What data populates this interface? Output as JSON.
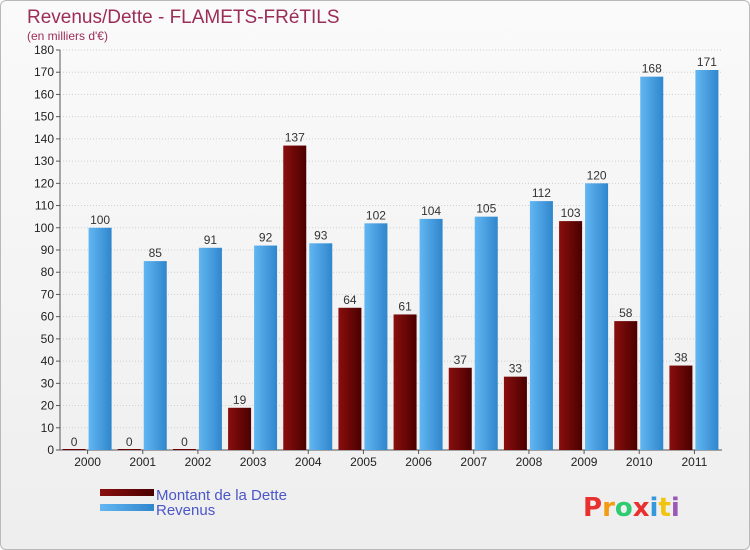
{
  "chart_data": {
    "type": "bar",
    "title": "Revenus/Dette - FLAMETS-FRéTILS",
    "subtitle": "(en milliers d'€)",
    "categories": [
      "2000",
      "2001",
      "2002",
      "2003",
      "2004",
      "2005",
      "2006",
      "2007",
      "2008",
      "2009",
      "2010",
      "2011"
    ],
    "series": [
      {
        "name": "Montant de la Dette",
        "color": "#6e0000",
        "values": [
          0,
          0,
          0,
          19,
          137,
          64,
          61,
          37,
          33,
          103,
          58,
          38
        ]
      },
      {
        "name": "Revenus",
        "color": "#4aa3e6",
        "values": [
          100,
          85,
          91,
          92,
          93,
          102,
          104,
          105,
          112,
          120,
          168,
          171
        ]
      }
    ],
    "ylim": [
      0,
      180
    ],
    "yticks": [
      0,
      10,
      20,
      30,
      40,
      50,
      60,
      70,
      80,
      90,
      100,
      110,
      120,
      130,
      140,
      150,
      160,
      170,
      180
    ],
    "grid": true,
    "legend_position": "bottom-left"
  },
  "logo": {
    "letters": [
      "P",
      "r",
      "o",
      "x",
      "i",
      "t",
      "i"
    ],
    "colors": [
      "#e8312f",
      "#f39c12",
      "#2ecc71",
      "#e8312f",
      "#3498db",
      "#f1c40f",
      "#9b59b6"
    ]
  }
}
